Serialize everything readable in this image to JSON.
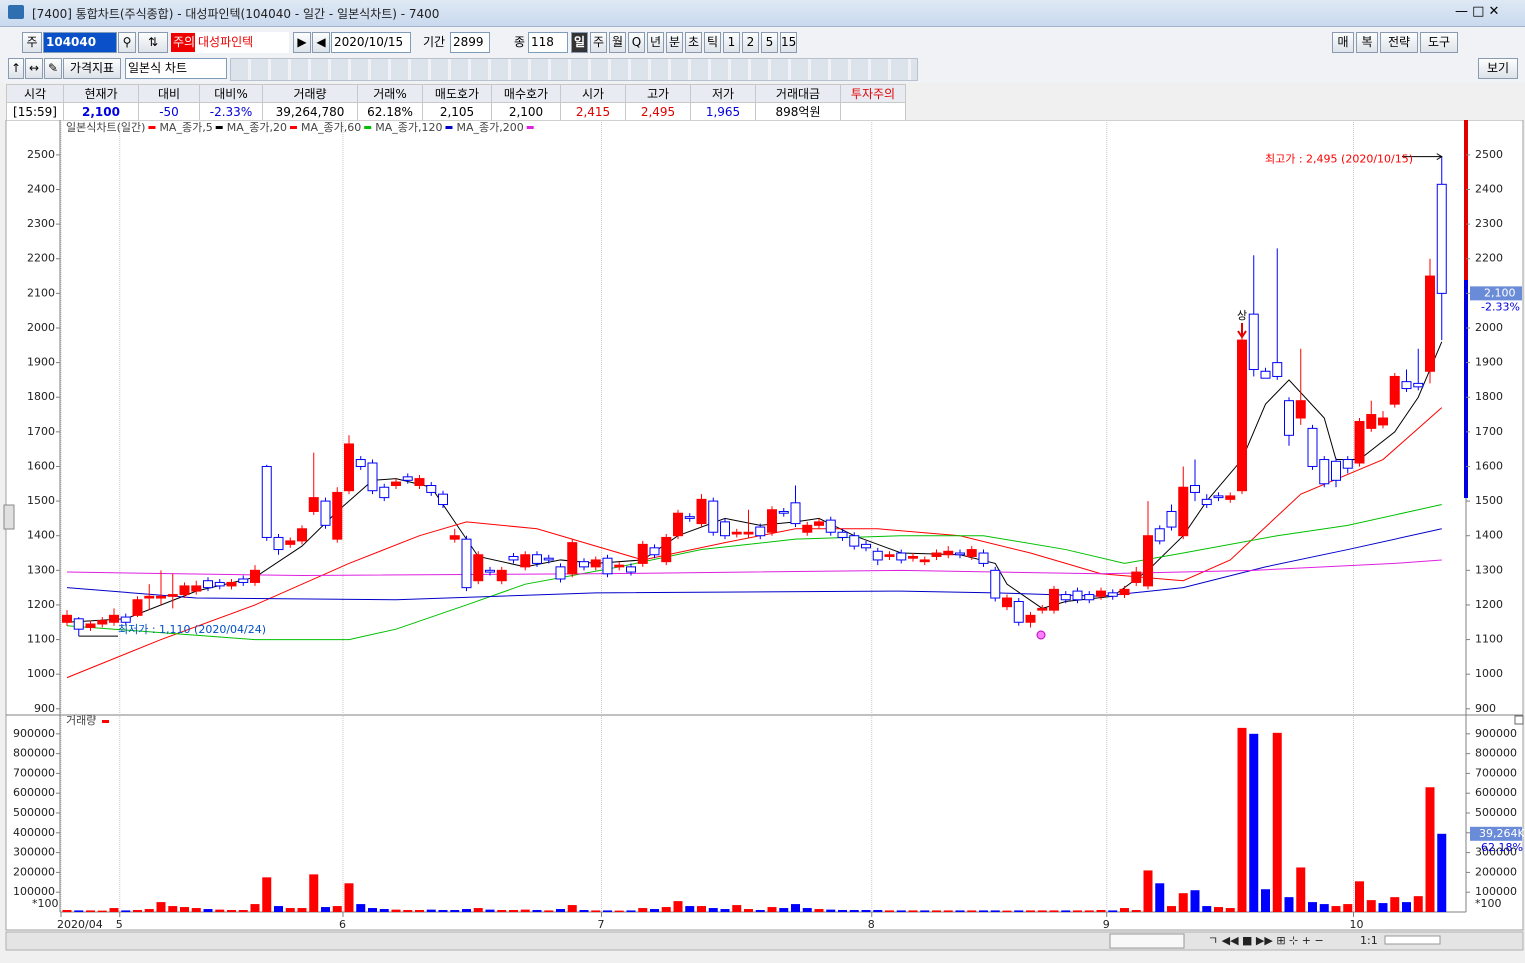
{
  "window": {
    "title": "[7400] 통합차트(주식종합) - 대성파인텍(104040 - 일간 - 일본식차트) - 7400"
  },
  "toolbar": {
    "row1": {
      "type": "주",
      "code": "104040",
      "warning": "주의",
      "name": "대성파인텍",
      "date": "2020/10/15",
      "period_label": "기간",
      "period": "2899",
      "count_label": "종",
      "count": "118",
      "intervals": [
        "일",
        "주",
        "월",
        "Q",
        "년",
        "분",
        "초",
        "틱",
        "1",
        "2",
        "5",
        "15"
      ],
      "right": [
        "매",
        "복",
        "전략",
        "도구"
      ]
    },
    "row2": {
      "indicator": "가격지표",
      "chart_type": "일본식 차트",
      "view": "보기"
    }
  },
  "quote": {
    "headers": [
      "시각",
      "현재가",
      "대비",
      "대비%",
      "거래량",
      "거래%",
      "매도호가",
      "매수호가",
      "시가",
      "고가",
      "저가",
      "거래대금",
      "투자주의"
    ],
    "values": [
      "[15:59]",
      "2,100",
      "-50",
      "-2.33%",
      "39,264,780",
      "62.18%",
      "2,105",
      "2,100",
      "2,415",
      "2,495",
      "1,965",
      "898억원",
      null
    ]
  },
  "chart_data": [
    {
      "type": "candlestick",
      "series": [
        {
          "name": "일본식차트(일간)",
          "type": "candlestick",
          "color": "#ff0000",
          "down_color": "#0000ff",
          "open": [
            1150,
            1160,
            1135,
            1145,
            1150,
            1165,
            1170,
            1220,
            1220,
            1225,
            1230,
            1240,
            1270,
            1265,
            1255,
            1275,
            1265,
            1600,
            1395,
            1375,
            1385,
            1470,
            1500,
            1390,
            1530,
            1620,
            1610,
            1540,
            1545,
            1570,
            1545,
            1545,
            1520,
            1390,
            1390,
            1270,
            1300,
            1270,
            1340,
            1310,
            1345,
            1335,
            1310,
            1290,
            1325,
            1310,
            1335,
            1310,
            1310,
            1320,
            1365,
            1325,
            1400,
            1455,
            1435,
            1500,
            1440,
            1405,
            1405,
            1425,
            1410,
            1470,
            1495,
            1410,
            1430,
            1445,
            1410,
            1400,
            1375,
            1355,
            1340,
            1350,
            1335,
            1325,
            1340,
            1345,
            1350,
            1340,
            1350,
            1300,
            1195,
            1210,
            1150,
            1185,
            1185,
            1230,
            1240,
            1230,
            1225,
            1235,
            1230,
            1265,
            1255,
            1420,
            1470,
            1400,
            1545,
            1505,
            1515,
            1505,
            1530,
            2040,
            1875,
            1900,
            1790,
            1740,
            1710,
            1620,
            1615,
            1620,
            1610,
            1710,
            1720,
            1780,
            1845,
            1840,
            1875,
            2415
          ],
          "high": [
            1185,
            1165,
            1155,
            1165,
            1190,
            1175,
            1225,
            1260,
            1300,
            1290,
            1265,
            1270,
            1280,
            1275,
            1275,
            1285,
            1315,
            1605,
            1405,
            1395,
            1430,
            1640,
            1510,
            1540,
            1690,
            1630,
            1620,
            1550,
            1565,
            1580,
            1575,
            1555,
            1530,
            1420,
            1400,
            1355,
            1310,
            1310,
            1350,
            1355,
            1355,
            1345,
            1320,
            1390,
            1335,
            1340,
            1345,
            1325,
            1320,
            1385,
            1375,
            1405,
            1475,
            1465,
            1520,
            1510,
            1450,
            1420,
            1475,
            1435,
            1485,
            1480,
            1545,
            1440,
            1450,
            1455,
            1420,
            1410,
            1385,
            1365,
            1355,
            1360,
            1350,
            1340,
            1360,
            1370,
            1360,
            1370,
            1360,
            1310,
            1230,
            1220,
            1180,
            1200,
            1255,
            1240,
            1250,
            1240,
            1250,
            1245,
            1255,
            1310,
            1500,
            1430,
            1490,
            1600,
            1620,
            1520,
            1525,
            1525,
            1975,
            2210,
            1885,
            2230,
            1800,
            1940,
            1720,
            1630,
            1625,
            1630,
            1740,
            1790,
            1760,
            1870,
            1880,
            1940,
            2200,
            2495
          ],
          "low": [
            1140,
            1110,
            1125,
            1135,
            1140,
            1140,
            1165,
            1185,
            1200,
            1190,
            1220,
            1230,
            1240,
            1245,
            1245,
            1255,
            1255,
            1385,
            1345,
            1365,
            1375,
            1460,
            1420,
            1380,
            1520,
            1590,
            1520,
            1500,
            1535,
            1550,
            1535,
            1515,
            1480,
            1380,
            1240,
            1260,
            1285,
            1260,
            1320,
            1300,
            1310,
            1320,
            1265,
            1280,
            1300,
            1300,
            1280,
            1300,
            1285,
            1310,
            1335,
            1315,
            1390,
            1440,
            1425,
            1400,
            1390,
            1395,
            1395,
            1390,
            1400,
            1455,
            1425,
            1400,
            1420,
            1400,
            1385,
            1360,
            1355,
            1315,
            1330,
            1320,
            1325,
            1315,
            1330,
            1335,
            1335,
            1330,
            1310,
            1210,
            1185,
            1140,
            1135,
            1175,
            1175,
            1205,
            1205,
            1205,
            1215,
            1215,
            1220,
            1255,
            1245,
            1375,
            1415,
            1390,
            1500,
            1480,
            1500,
            1495,
            1520,
            1860,
            1860,
            1850,
            1660,
            1720,
            1590,
            1540,
            1540,
            1580,
            1600,
            1700,
            1710,
            1770,
            1815,
            1820,
            1840,
            1965
          ],
          "close": [
            1170,
            1130,
            1145,
            1155,
            1170,
            1150,
            1215,
            1225,
            1225,
            1230,
            1255,
            1255,
            1250,
            1255,
            1265,
            1265,
            1300,
            1395,
            1360,
            1385,
            1420,
            1510,
            1430,
            1525,
            1665,
            1600,
            1530,
            1510,
            1555,
            1560,
            1565,
            1525,
            1490,
            1400,
            1250,
            1345,
            1295,
            1300,
            1330,
            1345,
            1320,
            1330,
            1275,
            1380,
            1310,
            1330,
            1290,
            1315,
            1295,
            1375,
            1345,
            1395,
            1465,
            1450,
            1505,
            1410,
            1400,
            1410,
            1410,
            1400,
            1475,
            1465,
            1435,
            1430,
            1440,
            1410,
            1395,
            1370,
            1365,
            1330,
            1345,
            1330,
            1340,
            1330,
            1350,
            1355,
            1345,
            1360,
            1320,
            1220,
            1220,
            1150,
            1170,
            1190,
            1245,
            1215,
            1215,
            1215,
            1240,
            1225,
            1245,
            1295,
            1400,
            1385,
            1425,
            1540,
            1525,
            1490,
            1510,
            1515,
            1965,
            1880,
            1855,
            1860,
            1690,
            1790,
            1600,
            1550,
            1560,
            1595,
            1730,
            1750,
            1740,
            1860,
            1825,
            1830,
            2150,
            2100
          ]
        },
        {
          "name": "MA_종가,5",
          "type": "line",
          "color": "#000000",
          "x": [
            0,
            5,
            11,
            16,
            20,
            23,
            26,
            28,
            31,
            33,
            35,
            39,
            42,
            45,
            49,
            52,
            56,
            59,
            62,
            64,
            67,
            71,
            76,
            79,
            80,
            83,
            85,
            89,
            92,
            95,
            97,
            100,
            102,
            104,
            107,
            108,
            110,
            113,
            115,
            117
          ],
          "values": [
            1150,
            1160,
            1240,
            1280,
            1370,
            1470,
            1560,
            1565,
            1540,
            1440,
            1340,
            1310,
            1330,
            1320,
            1330,
            1400,
            1450,
            1430,
            1440,
            1450,
            1400,
            1350,
            1345,
            1320,
            1260,
            1190,
            1210,
            1225,
            1300,
            1400,
            1500,
            1620,
            1780,
            1850,
            1740,
            1620,
            1620,
            1700,
            1800,
            1960
          ]
        },
        {
          "name": "MA_종가,20",
          "type": "line",
          "color": "#ff0000",
          "x": [
            0,
            8,
            16,
            24,
            30,
            34,
            40,
            49,
            56,
            62,
            69,
            76,
            82,
            88,
            95,
            99,
            105,
            112,
            117
          ],
          "values": [
            990,
            1100,
            1200,
            1320,
            1400,
            1440,
            1420,
            1330,
            1380,
            1420,
            1420,
            1400,
            1350,
            1290,
            1270,
            1330,
            1520,
            1620,
            1770
          ]
        },
        {
          "name": "MA_종가,60",
          "type": "line",
          "color": "#00c000",
          "x": [
            0,
            16,
            24,
            28,
            34,
            39,
            47,
            54,
            62,
            71,
            78,
            85,
            90,
            95,
            103,
            109,
            117
          ],
          "values": [
            1140,
            1100,
            1100,
            1130,
            1200,
            1260,
            1310,
            1360,
            1390,
            1400,
            1400,
            1360,
            1320,
            1350,
            1400,
            1430,
            1490
          ]
        },
        {
          "name": "MA_종가,120",
          "type": "line",
          "color": "#0000c8",
          "x": [
            0,
            11,
            28,
            45,
            71,
            79,
            88,
            95,
            102,
            109,
            117
          ],
          "values": [
            1250,
            1220,
            1215,
            1235,
            1240,
            1235,
            1225,
            1250,
            1310,
            1360,
            1420
          ]
        },
        {
          "name": "MA_종가,200",
          "type": "line",
          "color": "#e020e0",
          "x": [
            0,
            20,
            45,
            71,
            88,
            101,
            113,
            117
          ],
          "values": [
            1295,
            1285,
            1290,
            1300,
            1290,
            1300,
            1320,
            1330
          ]
        }
      ],
      "ylim": [
        885,
        2595
      ],
      "yticks": [
        900,
        1000,
        1100,
        1200,
        1300,
        1400,
        1500,
        1600,
        1700,
        1800,
        1900,
        2000,
        2100,
        2200,
        2300,
        2400,
        2500
      ],
      "annotations": [
        {
          "text": "최고가 : 2,495 (2020/10/15)",
          "color": "#ff0000"
        },
        {
          "text": "최저가 : 1,110 (2020/04/24)",
          "color": "#0050c8"
        },
        {
          "text": "상",
          "color": "#000000"
        }
      ],
      "last_label": "2,100",
      "change_label": "-2.33%"
    },
    {
      "type": "bar",
      "categories": [
        "2020/04",
        null,
        null,
        null,
        null,
        "5",
        null,
        null,
        null,
        null,
        null,
        null,
        null,
        null,
        null,
        null,
        null,
        null,
        null,
        null,
        null,
        null,
        null,
        null,
        "6",
        null,
        null,
        null,
        null,
        null,
        null,
        null,
        null,
        null,
        null,
        null,
        null,
        null,
        null,
        null,
        null,
        null,
        null,
        null,
        null,
        null,
        "7",
        null,
        null,
        null,
        null,
        null,
        null,
        null,
        null,
        null,
        null,
        null,
        null,
        null,
        null,
        null,
        null,
        null,
        null,
        null,
        null,
        null,
        null,
        "8",
        null,
        null,
        null,
        null,
        null,
        null,
        null,
        null,
        null,
        null,
        null,
        null,
        null,
        null,
        null,
        null,
        null,
        null,
        null,
        "9",
        null,
        null,
        null,
        null,
        null,
        null,
        null,
        null,
        null,
        null,
        null,
        null,
        null,
        null,
        null,
        null,
        null,
        null,
        null,
        null,
        "10",
        null,
        null,
        null,
        null,
        null,
        null,
        null
      ],
      "series": [
        {
          "name": "거래량",
          "color": "#ff0000",
          "down_color": "#0000ff",
          "values": [
            10000,
            8000,
            8000,
            7000,
            20000,
            8000,
            10000,
            15000,
            50000,
            30000,
            25000,
            20000,
            15000,
            12000,
            10000,
            10000,
            40000,
            175000,
            30000,
            20000,
            20000,
            190000,
            25000,
            30000,
            145000,
            40000,
            20000,
            15000,
            12000,
            10000,
            10000,
            12000,
            10000,
            10000,
            15000,
            20000,
            12000,
            10000,
            10000,
            12000,
            10000,
            8000,
            15000,
            35000,
            10000,
            8000,
            8000,
            7000,
            8000,
            20000,
            15000,
            25000,
            55000,
            30000,
            30000,
            20000,
            15000,
            35000,
            15000,
            10000,
            25000,
            20000,
            40000,
            20000,
            15000,
            12000,
            10000,
            10000,
            10000,
            10000,
            8000,
            8000,
            8000,
            8000,
            8000,
            8000,
            8000,
            8000,
            8000,
            8000,
            7000,
            8000,
            8000,
            8000,
            8000,
            8000,
            8000,
            8000,
            10000,
            8000,
            20000,
            10000,
            210000,
            145000,
            30000,
            95000,
            110000,
            30000,
            25000,
            20000,
            930000,
            900000,
            115000,
            905000,
            75000,
            225000,
            50000,
            40000,
            30000,
            40000,
            155000,
            60000,
            45000,
            75000,
            50000,
            80000,
            630000,
            395000
          ]
        }
      ],
      "ylim": [
        0,
        990000
      ],
      "yticks": [
        100000,
        200000,
        300000,
        400000,
        500000,
        600000,
        700000,
        800000,
        900000
      ],
      "unit_label": "*100",
      "last_label": "39,264K",
      "ratio_label": "62.18%"
    }
  ],
  "footer": {
    "zoom": "1:1"
  }
}
